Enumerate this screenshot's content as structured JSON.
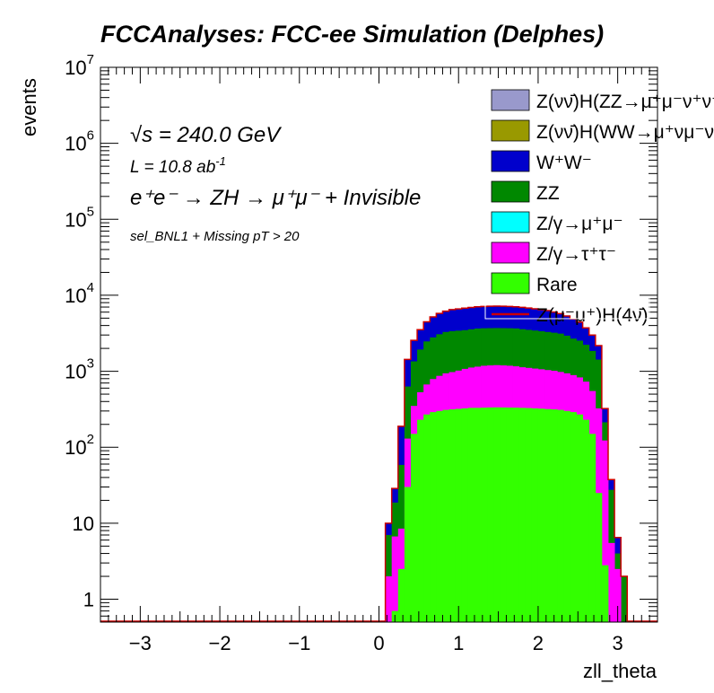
{
  "chart_data": {
    "type": "area",
    "title": "FCCAnalyses: FCC-ee Simulation (Delphes)",
    "xlabel": "zll_theta",
    "ylabel": "events",
    "xlim": [
      -3.5,
      3.5
    ],
    "ylim": [
      0.5,
      10000000
    ],
    "log_y": true,
    "x_ticks": [
      "−3",
      "−2",
      "−1",
      "0",
      "1",
      "2",
      "3"
    ],
    "y_ticks": [
      {
        "base": "1",
        "exp": ""
      },
      {
        "base": "10",
        "exp": ""
      },
      {
        "base": "10",
        "exp": "2"
      },
      {
        "base": "10",
        "exp": "3"
      },
      {
        "base": "10",
        "exp": "4"
      },
      {
        "base": "10",
        "exp": "5"
      },
      {
        "base": "10",
        "exp": "6"
      },
      {
        "base": "10",
        "exp": "7"
      }
    ],
    "annotations": {
      "sqrts": "√s = 240.0 GeV",
      "lumi_base": "L = 10.8 ab",
      "lumi_exp": "-1",
      "process": "e⁺e⁻ → ZH → μ⁺μ⁻ + Invisible",
      "selection": "sel_BNL1 + Missing pT > 20"
    },
    "legend_position": "top-right",
    "bins": {
      "x": [
        0.04,
        0.12,
        0.2,
        0.28,
        0.36,
        0.44,
        0.52,
        0.6,
        0.68,
        0.76,
        0.84,
        0.92,
        1.0,
        1.08,
        1.16,
        1.24,
        1.32,
        1.4,
        1.48,
        1.56,
        1.64,
        1.72,
        1.8,
        1.88,
        1.96,
        2.04,
        2.12,
        2.2,
        2.28,
        2.36,
        2.44,
        2.52,
        2.6,
        2.68,
        2.76,
        2.84,
        2.92,
        3.0,
        3.08,
        3.16
      ],
      "width": 0.08
    },
    "series": [
      {
        "name": "Z(νν̄)H(ZZ→μ⁺μ⁻ν⁺ν⁻)",
        "color": "#9999cc",
        "kind": "fill",
        "values": [
          0,
          0,
          0,
          0,
          0,
          0,
          0,
          0,
          0,
          0.55,
          0.62,
          0.7,
          0.78,
          0.86,
          0.94,
          1.0,
          1.05,
          1.1,
          1.12,
          1.13,
          1.12,
          1.1,
          1.05,
          1.0,
          0.93,
          0.85,
          0.77,
          0.69,
          0.6,
          0.52,
          0,
          0,
          0,
          0,
          0,
          0,
          0,
          0,
          0,
          0
        ]
      },
      {
        "name": "Z(νν̄)H(WW→μ⁺νμ⁻ν)",
        "color": "#999900",
        "kind": "fill",
        "values": [
          0,
          0,
          0,
          0,
          0,
          0,
          0,
          0,
          0,
          0,
          0,
          0,
          0,
          0,
          0,
          0,
          0,
          0,
          0,
          0,
          0,
          0,
          0,
          0,
          0,
          0,
          0,
          0,
          0,
          0,
          0,
          0,
          0,
          0,
          0,
          0,
          0,
          0,
          0,
          0
        ]
      },
      {
        "name": "W⁺W⁻",
        "color": "#0000cc",
        "kind": "fill",
        "values": [
          0,
          3,
          10,
          130,
          800,
          1200,
          1600,
          2000,
          2400,
          2700,
          2900,
          3100,
          3200,
          3300,
          3350,
          3400,
          3450,
          3480,
          3500,
          3480,
          3450,
          3400,
          3350,
          3300,
          3200,
          3100,
          3000,
          2800,
          2600,
          2400,
          2200,
          1900,
          1500,
          1150,
          750,
          110,
          10,
          2.5,
          0,
          0
        ]
      },
      {
        "name": "ZZ",
        "color": "#008800",
        "kind": "fill",
        "values": [
          0,
          5,
          12,
          50,
          500,
          1000,
          1400,
          1800,
          2000,
          2200,
          2350,
          2400,
          2400,
          2400,
          2450,
          2500,
          2500,
          2500,
          2500,
          2500,
          2500,
          2500,
          2450,
          2400,
          2350,
          2300,
          2250,
          2200,
          2150,
          2000,
          1800,
          1700,
          1500,
          1300,
          1100,
          90,
          22,
          1.5,
          2.0,
          0
        ]
      },
      {
        "name": "Z/γ→μ⁺μ⁻",
        "color": "#00ffff",
        "kind": "fill",
        "values": [
          0,
          0,
          0,
          0,
          0,
          0,
          0,
          0,
          0,
          0,
          0,
          0,
          0,
          0,
          0,
          0,
          0,
          0,
          0,
          0,
          0,
          0,
          0,
          0,
          0,
          0,
          0,
          0,
          0,
          0,
          0,
          0,
          0,
          0,
          0,
          0,
          0,
          0,
          0,
          0
        ]
      },
      {
        "name": "Z/γ→τ⁺τ⁻",
        "color": "#ff00ff",
        "kind": "fill",
        "values": [
          0,
          1.5,
          6,
          6,
          100,
          200,
          300,
          400,
          500,
          570,
          630,
          660,
          700,
          750,
          790,
          820,
          850,
          860,
          870,
          860,
          850,
          830,
          800,
          780,
          760,
          740,
          720,
          700,
          670,
          640,
          600,
          560,
          500,
          400,
          300,
          120,
          5,
          2.5,
          0,
          0
        ]
      },
      {
        "name": "Rare",
        "color": "#33ff00",
        "kind": "fill",
        "values": [
          0,
          0.5,
          0.7,
          2.5,
          30,
          150,
          230,
          270,
          290,
          300,
          310,
          315,
          320,
          325,
          330,
          330,
          332,
          334,
          335,
          334,
          333,
          332,
          330,
          328,
          325,
          322,
          318,
          315,
          310,
          300,
          290,
          270,
          230,
          150,
          25,
          2.8,
          0.5,
          0,
          0,
          0
        ]
      },
      {
        "name": "Z(μ⁻μ⁺)H(4ν̄)",
        "color": "#cc0000",
        "kind": "line",
        "values": [
          0,
          0,
          0,
          0,
          0,
          0,
          0,
          0,
          0,
          0,
          0,
          0,
          0,
          0,
          0,
          0,
          0,
          0,
          0,
          0,
          0,
          0,
          0,
          0,
          0,
          0,
          0,
          0,
          0,
          0,
          0,
          0,
          0,
          0,
          0,
          0,
          0,
          0,
          0,
          0
        ]
      }
    ]
  }
}
